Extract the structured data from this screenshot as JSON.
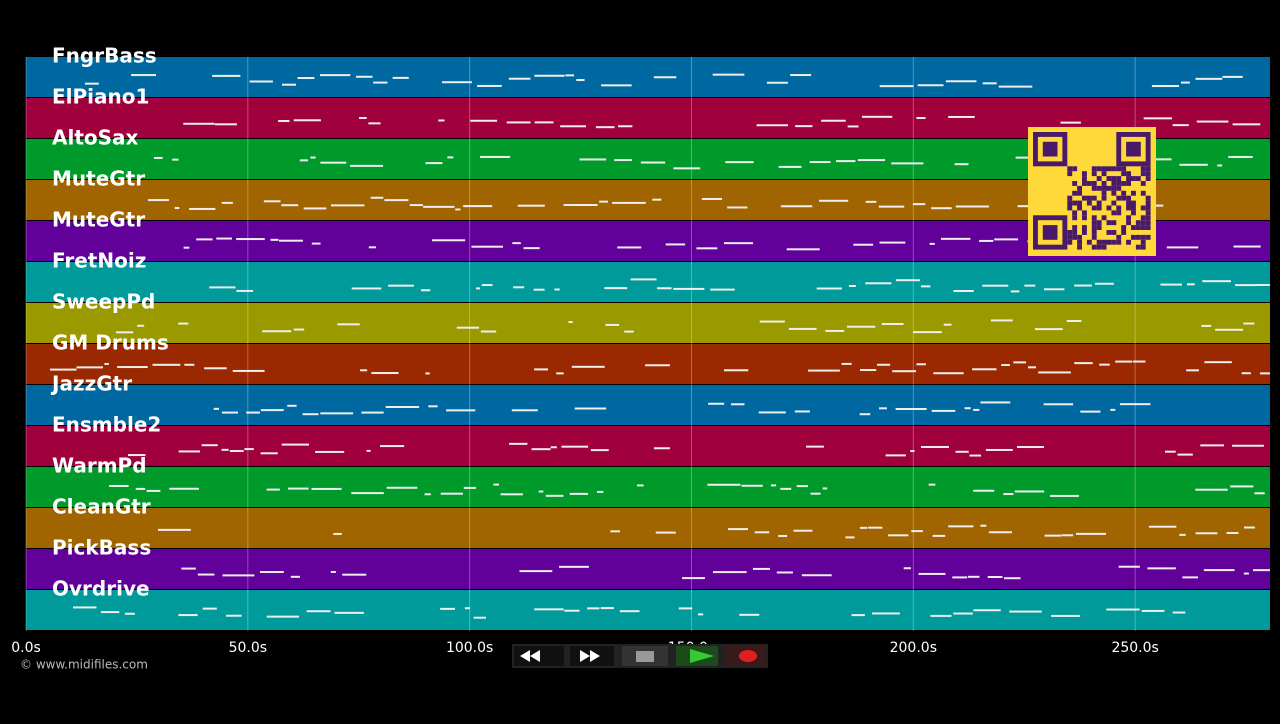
{
  "tracks": [
    {
      "name": "FngrBass",
      "color": "#0068a0"
    },
    {
      "name": "ElPiano1",
      "color": "#a0003c"
    },
    {
      "name": "AltoSax",
      "color": "#009a2a"
    },
    {
      "name": "MuteGtr",
      "color": "#a06400"
    },
    {
      "name": "MuteGtr",
      "color": "#62009a"
    },
    {
      "name": "FretNoiz",
      "color": "#009a9a"
    },
    {
      "name": "SweepPd",
      "color": "#9a9a00"
    },
    {
      "name": "GM Drums",
      "color": "#9a2800"
    },
    {
      "name": "JazzGtr",
      "color": "#0068a0"
    },
    {
      "name": "Ensmble2",
      "color": "#a0003c"
    },
    {
      "name": "WarmPd",
      "color": "#009a2a"
    },
    {
      "name": "CleanGtr",
      "color": "#a06400"
    },
    {
      "name": "PickBass",
      "color": "#62009a"
    },
    {
      "name": "Ovrdrive",
      "color": "#009a9a"
    }
  ],
  "timeline": {
    "xlim": [
      0,
      280.4
    ],
    "xticks": [
      {
        "value": 0,
        "label": "0.0s"
      },
      {
        "value": 50,
        "label": "50.0s"
      },
      {
        "value": 100,
        "label": "100.0s"
      },
      {
        "value": 150,
        "label": "150.0s"
      },
      {
        "value": 200,
        "label": "200.0s"
      },
      {
        "value": 250,
        "label": "250.0s"
      }
    ]
  },
  "footer": {
    "copyright": "© www.midifiles.com"
  }
}
